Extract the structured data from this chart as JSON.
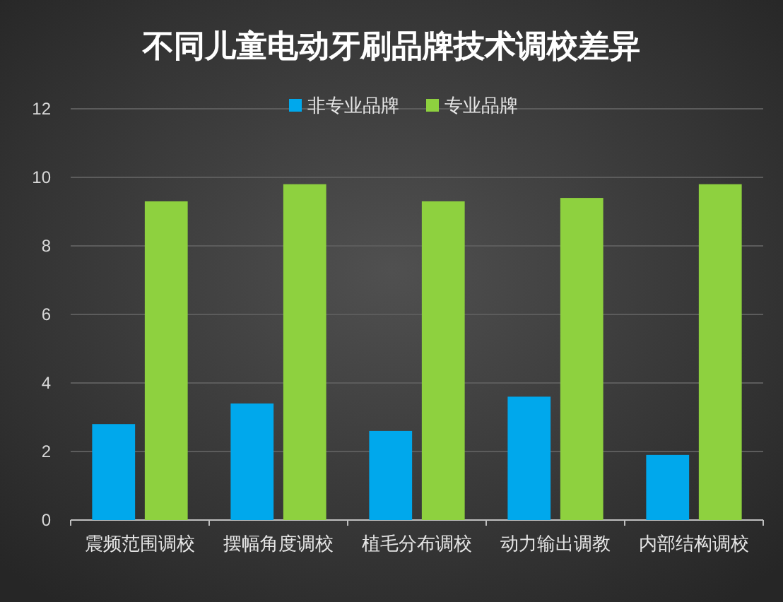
{
  "chart_data": {
    "type": "bar",
    "title": "不同儿童电动牙刷品牌技术调校差异",
    "categories": [
      "震频范围调校",
      "摆幅角度调校",
      "植毛分布调校",
      "动力输出调教",
      "内部结构调校"
    ],
    "series": [
      {
        "name": "非专业品牌",
        "color": "#00a8ec",
        "values": [
          2.8,
          3.4,
          2.6,
          3.6,
          1.9
        ]
      },
      {
        "name": "专业品牌",
        "color": "#8ed13f",
        "values": [
          9.3,
          9.8,
          9.3,
          9.4,
          9.8
        ]
      }
    ],
    "ylim": [
      0,
      12
    ],
    "yticks": [
      0,
      2,
      4,
      6,
      8,
      10,
      12
    ],
    "grid": "y",
    "legend": "top"
  }
}
